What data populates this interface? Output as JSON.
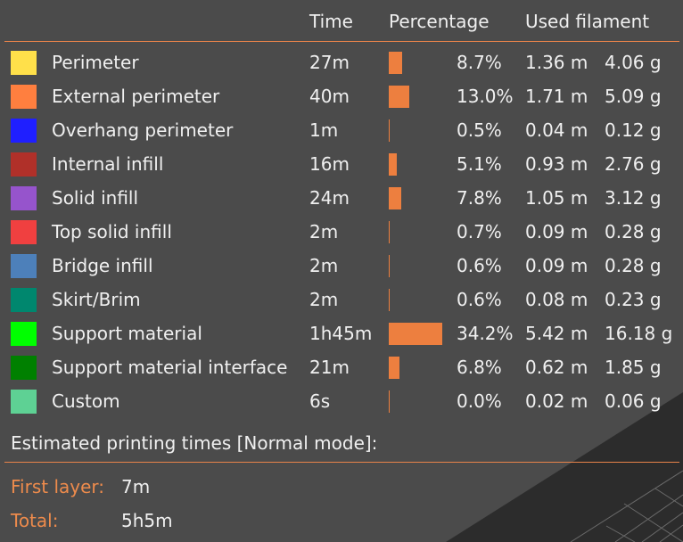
{
  "header": {
    "time": "Time",
    "percentage": "Percentage",
    "used_filament": "Used filament"
  },
  "rows": [
    {
      "name": "Perimeter",
      "color": "#ffe04a",
      "time": "27m",
      "percentage": "8.7%",
      "percent_value": 8.7,
      "length": "1.36 m",
      "weight": "4.06 g"
    },
    {
      "name": "External perimeter",
      "color": "#ff7f3f",
      "time": "40m",
      "percentage": "13.0%",
      "percent_value": 13.0,
      "length": "1.71 m",
      "weight": "5.09 g"
    },
    {
      "name": "Overhang perimeter",
      "color": "#1f1fff",
      "time": "1m",
      "percentage": "0.5%",
      "percent_value": 0.5,
      "length": "0.04 m",
      "weight": "0.12 g"
    },
    {
      "name": "Internal infill",
      "color": "#b03029",
      "time": "16m",
      "percentage": "5.1%",
      "percent_value": 5.1,
      "length": "0.93 m",
      "weight": "2.76 g"
    },
    {
      "name": "Solid infill",
      "color": "#9654cc",
      "time": "24m",
      "percentage": "7.8%",
      "percent_value": 7.8,
      "length": "1.05 m",
      "weight": "3.12 g"
    },
    {
      "name": "Top solid infill",
      "color": "#f04040",
      "time": "2m",
      "percentage": "0.7%",
      "percent_value": 0.7,
      "length": "0.09 m",
      "weight": "0.28 g"
    },
    {
      "name": "Bridge infill",
      "color": "#4d80ba",
      "time": "2m",
      "percentage": "0.6%",
      "percent_value": 0.6,
      "length": "0.09 m",
      "weight": "0.28 g"
    },
    {
      "name": "Skirt/Brim",
      "color": "#00876e",
      "time": "2m",
      "percentage": "0.6%",
      "percent_value": 0.6,
      "length": "0.08 m",
      "weight": "0.23 g"
    },
    {
      "name": "Support material",
      "color": "#00ff00",
      "time": "1h45m",
      "percentage": "34.2%",
      "percent_value": 34.2,
      "length": "5.42 m",
      "weight": "16.18 g"
    },
    {
      "name": "Support material interface",
      "color": "#008000",
      "time": "21m",
      "percentage": "6.8%",
      "percent_value": 6.8,
      "length": "0.62 m",
      "weight": "1.85 g"
    },
    {
      "name": "Custom",
      "color": "#5ed194",
      "time": "6s",
      "percentage": "0.0%",
      "percent_value": 0.0,
      "length": "0.02 m",
      "weight": "0.06 g"
    }
  ],
  "estimate": {
    "title": "Estimated printing times [Normal mode]:",
    "first_layer_label": "First layer:",
    "first_layer_value": "7m",
    "total_label": "Total:",
    "total_value": "5h5m"
  },
  "colors": {
    "accent": "#ed8b4c",
    "background": "#4b4b4b",
    "divider": "#e8834a"
  }
}
